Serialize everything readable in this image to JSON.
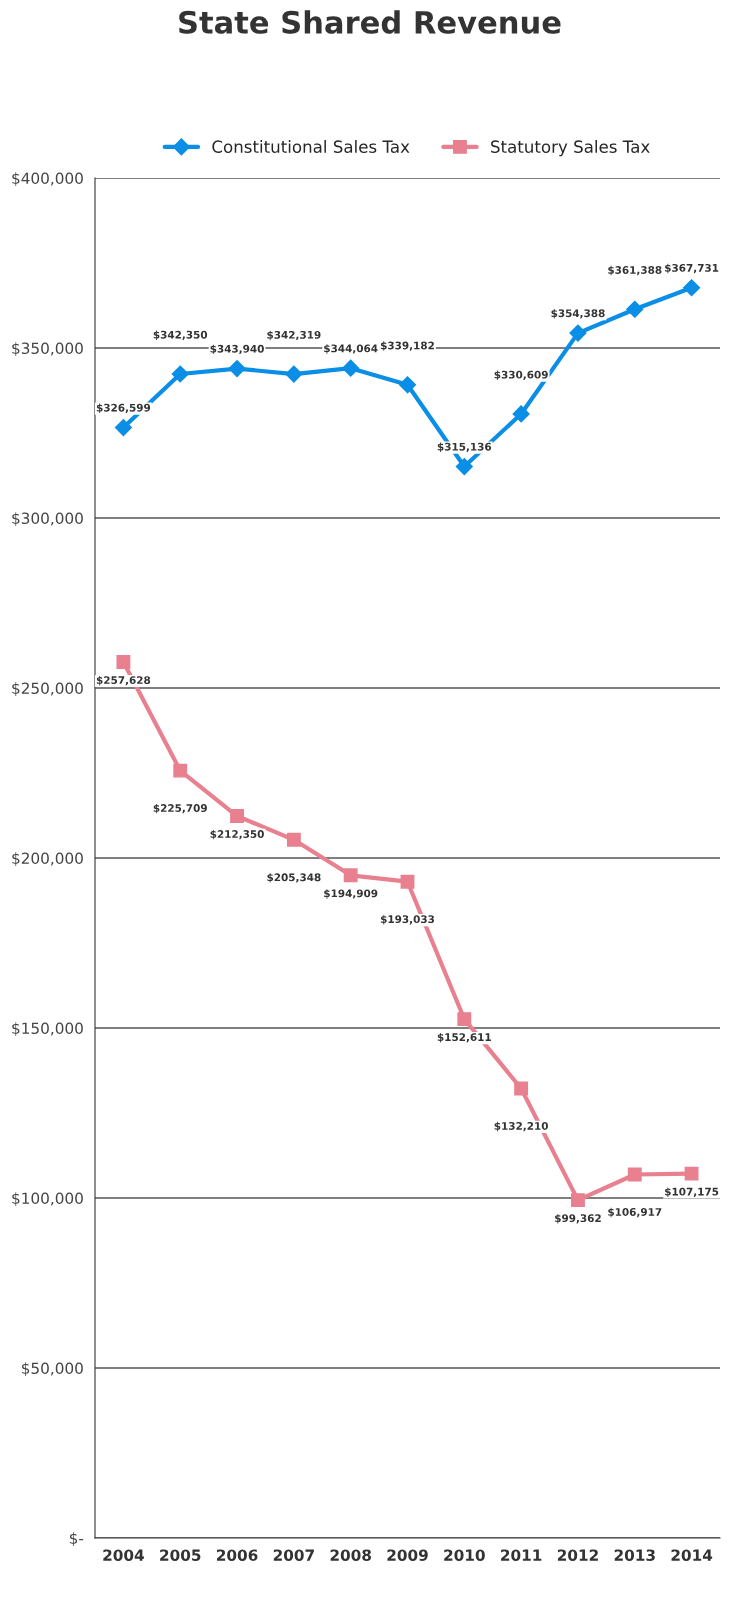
{
  "chart_data": {
    "type": "line",
    "title": "State Shared Revenue",
    "categories": [
      "2004",
      "2005",
      "2006",
      "2007",
      "2008",
      "2009",
      "2010",
      "2011",
      "2012",
      "2013",
      "2014"
    ],
    "series": [
      {
        "name": "Constitutional Sales Tax",
        "color": "#0a8ee6",
        "marker": "diamond",
        "values": [
          326599,
          342350,
          343940,
          342319,
          344064,
          339182,
          315136,
          330609,
          354388,
          361388,
          367731
        ],
        "value_labels": [
          "$326,599",
          "$342,350",
          "$343,940",
          "$342,319",
          "$344,064",
          "$339,182",
          "$315,136",
          "$330,609",
          "$354,388",
          "$361,388",
          "$367,731"
        ]
      },
      {
        "name": "Statutory Sales Tax",
        "color": "#e8808f",
        "marker": "square",
        "values": [
          257628,
          225709,
          212350,
          205348,
          194909,
          193033,
          152611,
          132210,
          99362,
          106917,
          107175
        ],
        "value_labels": [
          "$257,628",
          "$225,709",
          "$212,350",
          "$205,348",
          "$194,909",
          "$193,033",
          "$152,611",
          "$132,210",
          "$99,362",
          "$106,917",
          "$107,175"
        ]
      }
    ],
    "ylim": [
      0,
      400000
    ],
    "yticks": [
      {
        "value": 0,
        "label": "$-"
      },
      {
        "value": 50000,
        "label": "$50,000"
      },
      {
        "value": 100000,
        "label": "$100,000"
      },
      {
        "value": 150000,
        "label": "$150,000"
      },
      {
        "value": 200000,
        "label": "$200,000"
      },
      {
        "value": 250000,
        "label": "$250,000"
      },
      {
        "value": 300000,
        "label": "$300,000"
      },
      {
        "value": 350000,
        "label": "$350,000"
      },
      {
        "value": 400000,
        "label": "$400,000"
      }
    ],
    "grid": "y",
    "legend": "top"
  }
}
